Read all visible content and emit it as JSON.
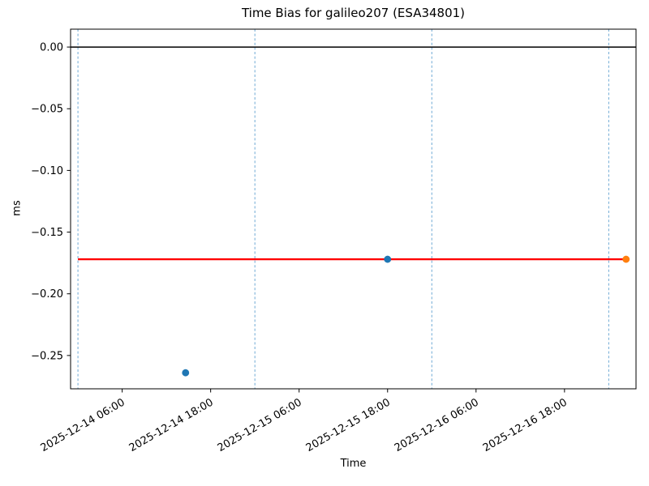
{
  "figure": {
    "background": "#ffffff"
  },
  "chart_data": {
    "type": "scatter",
    "title": "Time Bias for galileo207 (ESA34801)",
    "xlabel": "Time",
    "ylabel": "ms",
    "x_axis": {
      "epoch": "2025-12-14 00:00",
      "units": "hours since epoch",
      "range_hours": [
        -1.0,
        75.7
      ],
      "tick_hours": [
        6,
        18,
        30,
        42,
        54,
        66
      ],
      "tick_labels": [
        "2025-12-14 06:00",
        "2025-12-14 18:00",
        "2025-12-15 06:00",
        "2025-12-15 18:00",
        "2025-12-16 06:00",
        "2025-12-16 18:00"
      ],
      "day_boundary_hours": [
        0,
        24,
        48,
        72
      ],
      "tick_label_rotation_deg": -30
    },
    "y_axis": {
      "range": [
        -0.277,
        0.0145
      ],
      "ticks": [
        0,
        -0.05,
        -0.1,
        -0.15,
        -0.2,
        -0.25
      ],
      "tick_labels": [
        "0.00",
        "−0.05",
        "−0.10",
        "−0.15",
        "−0.20",
        "−0.25"
      ]
    },
    "series": [
      {
        "name": "observed-bias-points",
        "color": "#1f77b4",
        "marker": "circle",
        "points": [
          {
            "hours": 14.6,
            "value": -0.264,
            "time_approx": "2025-12-14 14:40"
          },
          {
            "hours": 42.0,
            "value": -0.172,
            "time_approx": "2025-12-15 18:00"
          }
        ]
      },
      {
        "name": "latest-bias-point",
        "color": "#ff7f0e",
        "marker": "circle",
        "points": [
          {
            "hours": 74.35,
            "value": -0.172,
            "time_approx": "2025-12-17 02:20"
          }
        ]
      }
    ],
    "fit_line": {
      "color": "#ff0000",
      "value": -0.172,
      "start_hours": 0,
      "end_hours": 74.35
    },
    "zero_line": {
      "color": "#000000",
      "value": 0
    },
    "grid": {
      "on": true,
      "color": "#6ea9d4",
      "style": "dashed",
      "orientation": "vertical-day-boundaries"
    },
    "legend": {
      "visible": false
    }
  }
}
